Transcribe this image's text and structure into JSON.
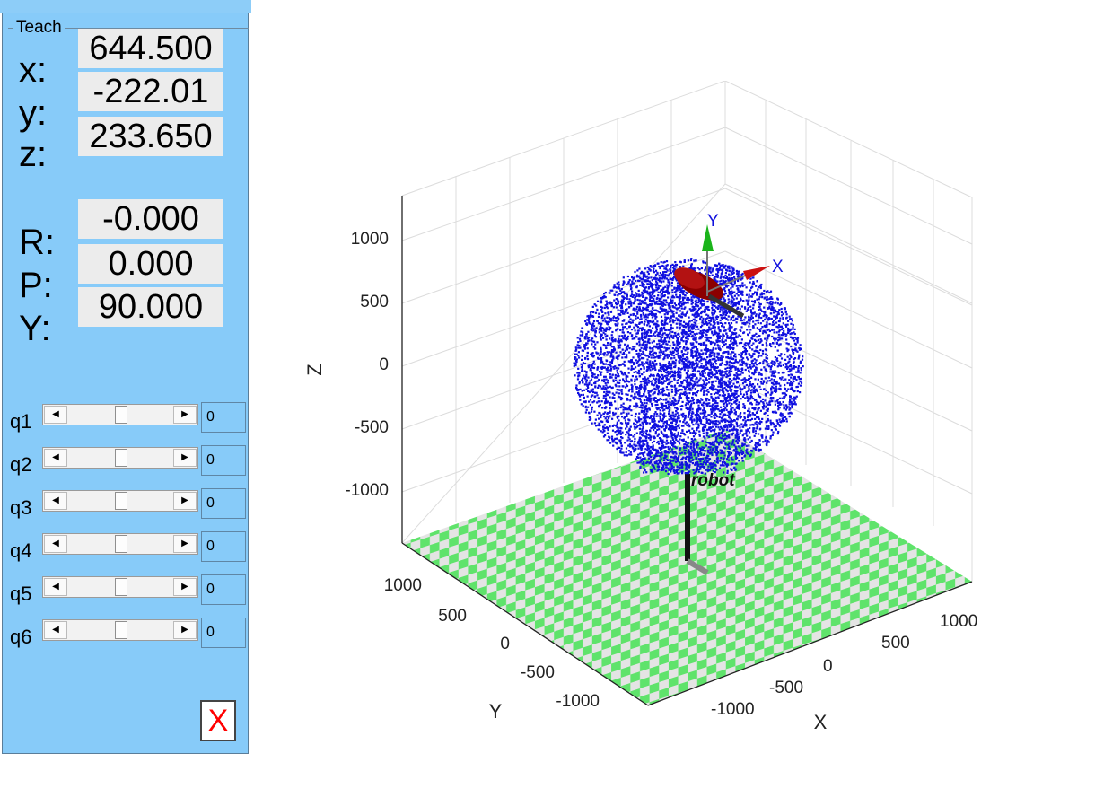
{
  "teach": {
    "title": "Teach",
    "position": [
      {
        "label": "x:",
        "value": "644.500"
      },
      {
        "label": "y:",
        "value": "-222.01"
      },
      {
        "label": "z:",
        "value": "233.650"
      }
    ],
    "orientation": [
      {
        "label": "R:",
        "value": "-0.000"
      },
      {
        "label": "P:",
        "value": "0.000"
      },
      {
        "label": "Y:",
        "value": "90.000"
      }
    ],
    "joints": [
      {
        "label": "q1",
        "value": "0"
      },
      {
        "label": "q2",
        "value": "0"
      },
      {
        "label": "q3",
        "value": "0"
      },
      {
        "label": "q4",
        "value": "0"
      },
      {
        "label": "q5",
        "value": "0"
      },
      {
        "label": "q6",
        "value": "0"
      }
    ],
    "close_label": "X"
  },
  "plot": {
    "robot_name": "robot",
    "axis_labels": {
      "x": "X",
      "y": "Y",
      "z": "Z"
    },
    "frame_labels": {
      "x": "X",
      "y": "Y"
    },
    "z_ticks": [
      "1000",
      "500",
      "0",
      "-500",
      "-1000"
    ],
    "y_ticks": [
      "1000",
      "500",
      "0",
      "-500",
      "-1000"
    ],
    "x_ticks": [
      "1000",
      "500",
      "0",
      "-500",
      "-1000"
    ],
    "colors": {
      "points": "#1010e0",
      "floor_a": "#5fe36b",
      "floor_b": "#e4e4e4",
      "link": "#8b0000",
      "frame_x": "#cc1111",
      "frame_y": "#1bb41b"
    }
  }
}
